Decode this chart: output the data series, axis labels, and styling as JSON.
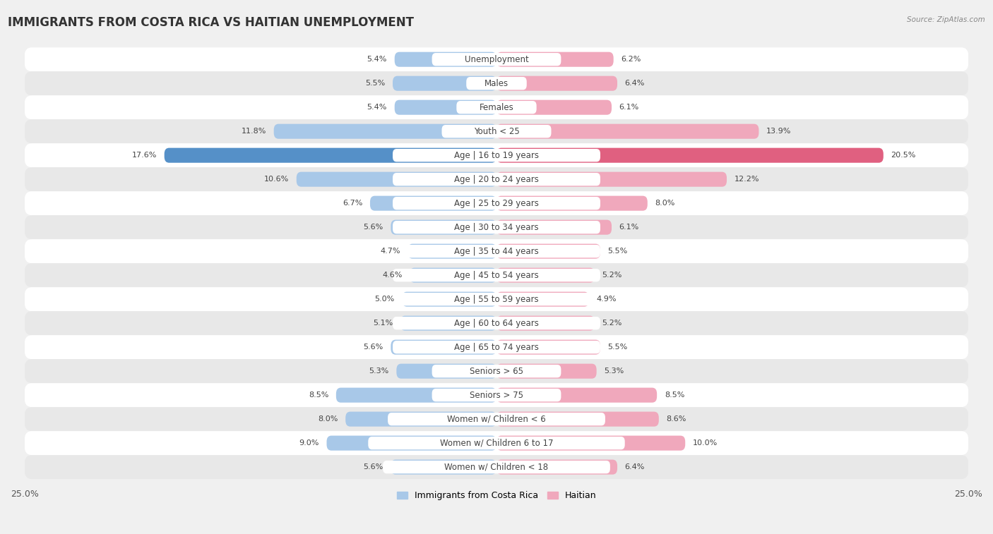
{
  "title": "IMMIGRANTS FROM COSTA RICA VS HAITIAN UNEMPLOYMENT",
  "source": "Source: ZipAtlas.com",
  "categories": [
    "Unemployment",
    "Males",
    "Females",
    "Youth < 25",
    "Age | 16 to 19 years",
    "Age | 20 to 24 years",
    "Age | 25 to 29 years",
    "Age | 30 to 34 years",
    "Age | 35 to 44 years",
    "Age | 45 to 54 years",
    "Age | 55 to 59 years",
    "Age | 60 to 64 years",
    "Age | 65 to 74 years",
    "Seniors > 65",
    "Seniors > 75",
    "Women w/ Children < 6",
    "Women w/ Children 6 to 17",
    "Women w/ Children < 18"
  ],
  "left_values": [
    5.4,
    5.5,
    5.4,
    11.8,
    17.6,
    10.6,
    6.7,
    5.6,
    4.7,
    4.6,
    5.0,
    5.1,
    5.6,
    5.3,
    8.5,
    8.0,
    9.0,
    5.6
  ],
  "right_values": [
    6.2,
    6.4,
    6.1,
    13.9,
    20.5,
    12.2,
    8.0,
    6.1,
    5.5,
    5.2,
    4.9,
    5.2,
    5.5,
    5.3,
    8.5,
    8.6,
    10.0,
    6.4
  ],
  "left_color": "#a8c8e8",
  "right_color": "#f0a8bc",
  "left_highlight_color": "#5590c8",
  "right_highlight_color": "#e06080",
  "highlight_row": 4,
  "xlim": 25.0,
  "legend_left": "Immigrants from Costa Rica",
  "legend_right": "Haitian",
  "bg_color": "#f0f0f0",
  "row_color_even": "#ffffff",
  "row_color_odd": "#e8e8e8",
  "title_fontsize": 12,
  "label_fontsize": 8.5,
  "value_fontsize": 8.0
}
